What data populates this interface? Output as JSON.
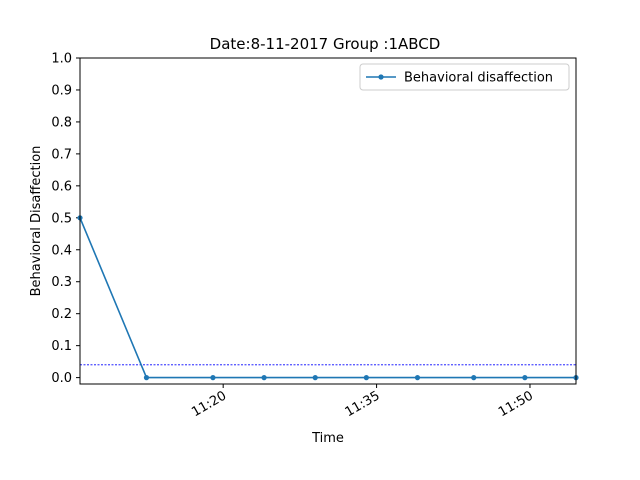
{
  "chart_data": {
    "type": "line",
    "title": "Date:8-11-2017 Group :1ABCD",
    "xlabel": "Time",
    "ylabel": "Behavioral Disaffection",
    "date": "2017-08-11",
    "xlim": [
      "11:06:00",
      "11:54:30"
    ],
    "ylim": [
      -0.02,
      1.0
    ],
    "yticks": [
      0.0,
      0.1,
      0.2,
      0.3,
      0.4,
      0.5,
      0.6,
      0.7,
      0.8,
      0.9,
      1.0
    ],
    "ytick_labels": [
      "0.0",
      "0.1",
      "0.2",
      "0.3",
      "0.4",
      "0.5",
      "0.6",
      "0.7",
      "0.8",
      "0.9",
      "1.0"
    ],
    "xticks": [
      "11:20:00",
      "11:35:00",
      "11:50:00"
    ],
    "xtick_labels": [
      "11:20",
      "11:35",
      "11:50"
    ],
    "grid": false,
    "legend_position": "top-right",
    "series": [
      {
        "name": "Behavioral disaffection",
        "color": "#1f77b4",
        "marker": "dot",
        "x": [
          "11:06:00",
          "11:12:30",
          "11:19:00",
          "11:24:00",
          "11:29:00",
          "11:34:00",
          "11:39:00",
          "11:44:30",
          "11:49:30",
          "11:54:30"
        ],
        "values": [
          0.5,
          0.0,
          0.0,
          0.0,
          0.0,
          0.0,
          0.0,
          0.0,
          0.0,
          0.0
        ]
      }
    ],
    "reference_lines": [
      {
        "axis": "y",
        "value": 0.04,
        "color": "#0000ff",
        "style": "dashed"
      }
    ]
  }
}
